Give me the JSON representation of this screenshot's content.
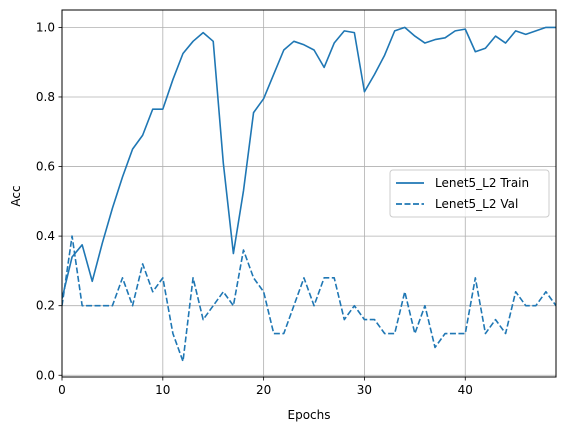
{
  "chart_data": {
    "type": "line",
    "xlabel": "Epochs",
    "ylabel": "Acc",
    "xlim": [
      0,
      49
    ],
    "ylim": [
      -0.005,
      1.05
    ],
    "xticks": [
      0,
      10,
      20,
      30,
      40
    ],
    "yticks": [
      0.0,
      0.2,
      0.4,
      0.6,
      0.8,
      1.0
    ],
    "xtick_labels": [
      "0",
      "10",
      "20",
      "30",
      "40"
    ],
    "ytick_labels": [
      "0.0",
      "0.2",
      "0.4",
      "0.6",
      "0.8",
      "1.0"
    ],
    "grid": true,
    "legend_position": "center-right",
    "colors": {
      "series": "#1f77b4",
      "grid": "#b0b0b0",
      "axes": "#000000"
    },
    "x": [
      0,
      1,
      2,
      3,
      4,
      5,
      6,
      7,
      8,
      9,
      10,
      11,
      12,
      13,
      14,
      15,
      16,
      17,
      18,
      19,
      20,
      21,
      22,
      23,
      24,
      25,
      26,
      27,
      28,
      29,
      30,
      31,
      32,
      33,
      34,
      35,
      36,
      37,
      38,
      39,
      40,
      41,
      42,
      43,
      44,
      45,
      46,
      47,
      48,
      49
    ],
    "series": [
      {
        "name": "Lenet5_L2 Train",
        "style": "solid",
        "values": [
          0.22,
          0.34,
          0.375,
          0.27,
          0.38,
          0.48,
          0.57,
          0.65,
          0.69,
          0.765,
          0.765,
          0.85,
          0.925,
          0.96,
          0.985,
          0.96,
          0.61,
          0.35,
          0.53,
          0.755,
          0.795,
          0.865,
          0.935,
          0.96,
          0.95,
          0.935,
          0.885,
          0.955,
          0.99,
          0.985,
          0.815,
          0.865,
          0.92,
          0.99,
          1.0,
          0.975,
          0.955,
          0.965,
          0.97,
          0.99,
          0.995,
          0.93,
          0.94,
          0.975,
          0.955,
          0.99,
          0.98,
          0.99,
          1.0,
          1.0
        ]
      },
      {
        "name": "Lenet5_L2 Val",
        "style": "dashed",
        "values": [
          0.2,
          0.4,
          0.2,
          0.2,
          0.2,
          0.2,
          0.28,
          0.2,
          0.32,
          0.24,
          0.28,
          0.12,
          0.04,
          0.28,
          0.16,
          0.2,
          0.24,
          0.2,
          0.36,
          0.28,
          0.24,
          0.12,
          0.12,
          0.2,
          0.28,
          0.2,
          0.28,
          0.28,
          0.16,
          0.2,
          0.16,
          0.16,
          0.12,
          0.12,
          0.24,
          0.12,
          0.2,
          0.08,
          0.12,
          0.12,
          0.12,
          0.28,
          0.12,
          0.16,
          0.12,
          0.24,
          0.2,
          0.2,
          0.24,
          0.2
        ]
      }
    ]
  }
}
